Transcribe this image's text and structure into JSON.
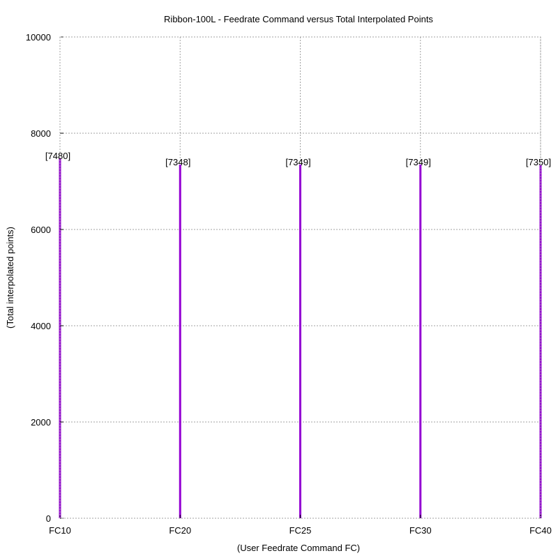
{
  "chart_data": {
    "type": "bar",
    "title": "Ribbon-100L - Feedrate Command versus Total Interpolated Points",
    "xlabel": "(User Feedrate Command FC)",
    "ylabel": "(Total interpolated points)",
    "categories": [
      "FC10",
      "FC20",
      "FC25",
      "FC30",
      "FC40"
    ],
    "values": [
      7480,
      7348,
      7349,
      7349,
      7350
    ],
    "data_labels": [
      "[7480]",
      "[7348]",
      "[7349]",
      "[7349]",
      "[7350]"
    ],
    "ylim": [
      0,
      10000
    ],
    "yticks": [
      0,
      2000,
      4000,
      6000,
      8000,
      10000
    ],
    "ytick_labels": [
      "0",
      "2000",
      "4000",
      "6000",
      "8000",
      "10000"
    ],
    "grid": true,
    "bar_color": "#9400d3",
    "style": "impulses"
  }
}
